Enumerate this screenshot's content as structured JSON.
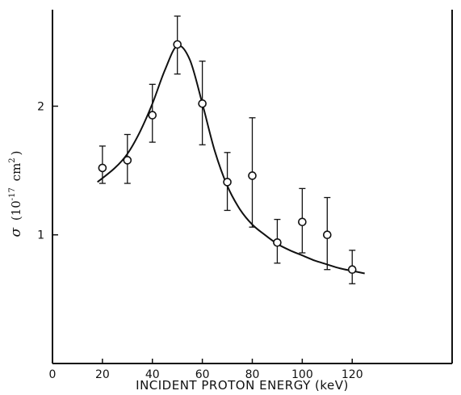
{
  "chart_data": {
    "type": "scatter",
    "xlabel": "INCIDENT PROTON ENERGY (keV)",
    "ylabel": {
      "symbol": "σ",
      "open": "(10",
      "exp": "-17",
      "unit": "cm",
      "unit_exp": "2",
      "close": ")"
    },
    "xlim": [
      0,
      160
    ],
    "ylim": [
      0,
      2.75
    ],
    "xticks": [
      0,
      20,
      40,
      60,
      80,
      100,
      120
    ],
    "xtick_labels": [
      "0",
      "20",
      "40",
      "60",
      "80",
      "100",
      "120"
    ],
    "yticks": [
      1,
      2
    ],
    "ytick_labels": [
      "1",
      "2"
    ],
    "grid": false,
    "series": [
      {
        "type": "scatter-errorbar",
        "points": [
          {
            "x": 20,
            "y": 1.52,
            "ylo": 1.4,
            "yhi": 1.69
          },
          {
            "x": 30,
            "y": 1.58,
            "ylo": 1.4,
            "yhi": 1.78
          },
          {
            "x": 40,
            "y": 1.93,
            "ylo": 1.72,
            "yhi": 2.17
          },
          {
            "x": 50,
            "y": 2.48,
            "ylo": 2.25,
            "yhi": 2.7
          },
          {
            "x": 60,
            "y": 2.02,
            "ylo": 1.7,
            "yhi": 2.35
          },
          {
            "x": 70,
            "y": 1.41,
            "ylo": 1.19,
            "yhi": 1.64
          },
          {
            "x": 80,
            "y": 1.46,
            "ylo": 1.06,
            "yhi": 1.91
          },
          {
            "x": 90,
            "y": 0.94,
            "ylo": 0.78,
            "yhi": 1.12
          },
          {
            "x": 100,
            "y": 1.1,
            "ylo": 0.86,
            "yhi": 1.36
          },
          {
            "x": 110,
            "y": 1.0,
            "ylo": 0.73,
            "yhi": 1.29
          },
          {
            "x": 120,
            "y": 0.73,
            "ylo": 0.62,
            "yhi": 0.88
          }
        ]
      },
      {
        "type": "line",
        "x": [
          18,
          25,
          30,
          35,
          40,
          45,
          50,
          55,
          60,
          65,
          70,
          75,
          80,
          85,
          90,
          95,
          100,
          105,
          110,
          115,
          120,
          125
        ],
        "y": [
          1.41,
          1.52,
          1.63,
          1.8,
          2.02,
          2.28,
          2.47,
          2.36,
          2.02,
          1.65,
          1.38,
          1.2,
          1.08,
          1.0,
          0.93,
          0.88,
          0.84,
          0.8,
          0.77,
          0.74,
          0.72,
          0.7
        ]
      }
    ]
  }
}
